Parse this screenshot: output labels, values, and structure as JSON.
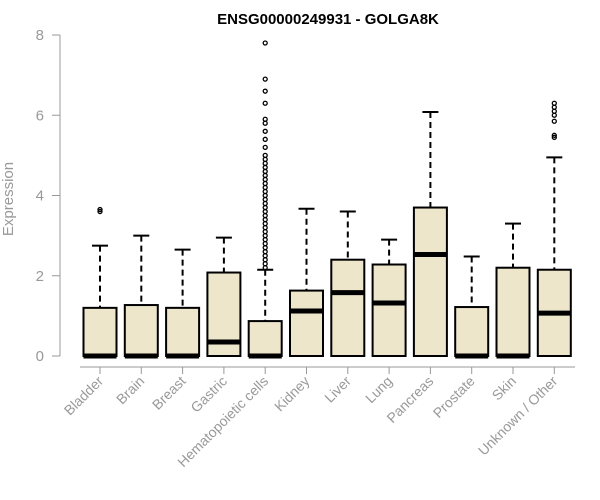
{
  "chart_data": {
    "type": "box",
    "title": "ENSG00000249931 - GOLGA8K",
    "xlabel": "",
    "ylabel": "Expression",
    "ylim": [
      0,
      8
    ],
    "yticks": [
      0,
      2,
      4,
      6,
      8
    ],
    "grid": false,
    "colors": {
      "box_fill": "#ede6cb",
      "stroke": "#000000",
      "axis_text": "#999999"
    },
    "categories": [
      "Bladder",
      "Brain",
      "Breast",
      "Gastric",
      "Hematopoietic cells",
      "Kidney",
      "Liver",
      "Lung",
      "Pancreas",
      "Prostate",
      "Skin",
      "Unknown / Other"
    ],
    "boxes": [
      {
        "category": "Bladder",
        "whisker_low": 0,
        "q1": 0,
        "median": 0,
        "q3": 1.2,
        "whisker_high": 2.75,
        "outliers": [
          3.6,
          3.65
        ]
      },
      {
        "category": "Brain",
        "whisker_low": 0,
        "q1": 0,
        "median": 0,
        "q3": 1.27,
        "whisker_high": 3.0,
        "outliers": []
      },
      {
        "category": "Breast",
        "whisker_low": 0,
        "q1": 0,
        "median": 0,
        "q3": 1.2,
        "whisker_high": 2.65,
        "outliers": []
      },
      {
        "category": "Gastric",
        "whisker_low": 0,
        "q1": 0,
        "median": 0.35,
        "q3": 2.08,
        "whisker_high": 2.95,
        "outliers": []
      },
      {
        "category": "Hematopoietic cells",
        "whisker_low": 0,
        "q1": 0,
        "median": 0,
        "q3": 0.87,
        "whisker_high": 2.15,
        "outliers": [
          2.2,
          2.3,
          2.4,
          2.5,
          2.6,
          2.7,
          2.8,
          2.9,
          3.0,
          3.1,
          3.2,
          3.3,
          3.4,
          3.5,
          3.6,
          3.7,
          3.8,
          3.9,
          4.0,
          4.1,
          4.2,
          4.3,
          4.4,
          4.5,
          4.6,
          4.7,
          4.8,
          4.9,
          5.0,
          5.2,
          5.4,
          5.6,
          5.8,
          5.9,
          6.3,
          6.6,
          6.9,
          7.8
        ]
      },
      {
        "category": "Kidney",
        "whisker_low": 0,
        "q1": 0,
        "median": 1.12,
        "q3": 1.63,
        "whisker_high": 3.67,
        "outliers": []
      },
      {
        "category": "Liver",
        "whisker_low": 0,
        "q1": 0,
        "median": 1.58,
        "q3": 2.4,
        "whisker_high": 3.6,
        "outliers": []
      },
      {
        "category": "Lung",
        "whisker_low": 0,
        "q1": 0,
        "median": 1.32,
        "q3": 2.28,
        "whisker_high": 2.9,
        "outliers": []
      },
      {
        "category": "Pancreas",
        "whisker_low": 0,
        "q1": 0,
        "median": 2.53,
        "q3": 3.7,
        "whisker_high": 6.08,
        "outliers": []
      },
      {
        "category": "Prostate",
        "whisker_low": 0,
        "q1": 0,
        "median": 0,
        "q3": 1.22,
        "whisker_high": 2.48,
        "outliers": []
      },
      {
        "category": "Skin",
        "whisker_low": 0,
        "q1": 0,
        "median": 0,
        "q3": 2.2,
        "whisker_high": 3.3,
        "outliers": []
      },
      {
        "category": "Unknown / Other",
        "whisker_low": 0,
        "q1": 0,
        "median": 1.07,
        "q3": 2.15,
        "whisker_high": 4.95,
        "outliers": [
          5.45,
          5.5,
          5.85,
          6.0,
          6.1,
          6.2,
          6.3
        ]
      }
    ]
  }
}
